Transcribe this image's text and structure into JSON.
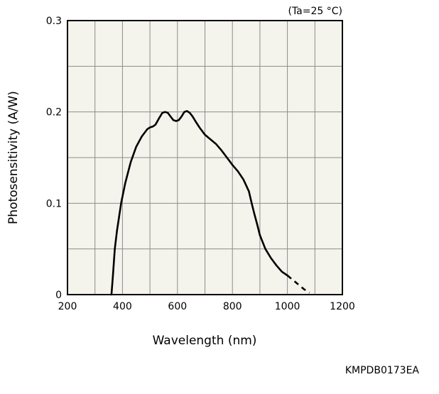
{
  "chart_data": {
    "type": "line",
    "title": "",
    "condition_note": "(Ta=25 °C)",
    "xlabel": "Wavelength (nm)",
    "ylabel": "Photosensitivity (A/W)",
    "xlim": [
      200,
      1200
    ],
    "ylim": [
      0,
      0.3
    ],
    "x_ticks": [
      200,
      400,
      600,
      800,
      1000,
      1200
    ],
    "x_tick_labels": [
      "200",
      "400",
      "600",
      "800",
      "1000",
      "1200"
    ],
    "y_ticks": [
      0,
      0.1,
      0.2,
      0.3
    ],
    "y_tick_labels": [
      "0",
      "0.1",
      "0.2",
      "0.3"
    ],
    "grid": true,
    "background_color": "#f4f3ec",
    "line_color": "#000000",
    "series": [
      {
        "style": "solid",
        "x": [
          360,
          365,
          372,
          380,
          395,
          410,
          430,
          450,
          470,
          490,
          500,
          510,
          520,
          535,
          545,
          555,
          565,
          575,
          585,
          595,
          605,
          615,
          625,
          635,
          645,
          655,
          665,
          680,
          700,
          720,
          740,
          760,
          780,
          800,
          820,
          840,
          860,
          870,
          880,
          890,
          900,
          920,
          940,
          960,
          980,
          1000
        ],
        "y": [
          0,
          0.02,
          0.05,
          0.07,
          0.1,
          0.122,
          0.145,
          0.162,
          0.173,
          0.181,
          0.183,
          0.184,
          0.186,
          0.194,
          0.199,
          0.2,
          0.199,
          0.195,
          0.191,
          0.19,
          0.191,
          0.195,
          0.2,
          0.201,
          0.199,
          0.195,
          0.19,
          0.183,
          0.175,
          0.17,
          0.165,
          0.158,
          0.15,
          0.142,
          0.135,
          0.126,
          0.113,
          0.1,
          0.088,
          0.077,
          0.065,
          0.05,
          0.04,
          0.032,
          0.025,
          0.021
        ]
      },
      {
        "style": "dashed",
        "x": [
          1000,
          1020,
          1040,
          1060,
          1080
        ],
        "y": [
          0.021,
          0.016,
          0.011,
          0.006,
          0.002
        ]
      }
    ],
    "figure_code": "KMPDB0173EA"
  }
}
